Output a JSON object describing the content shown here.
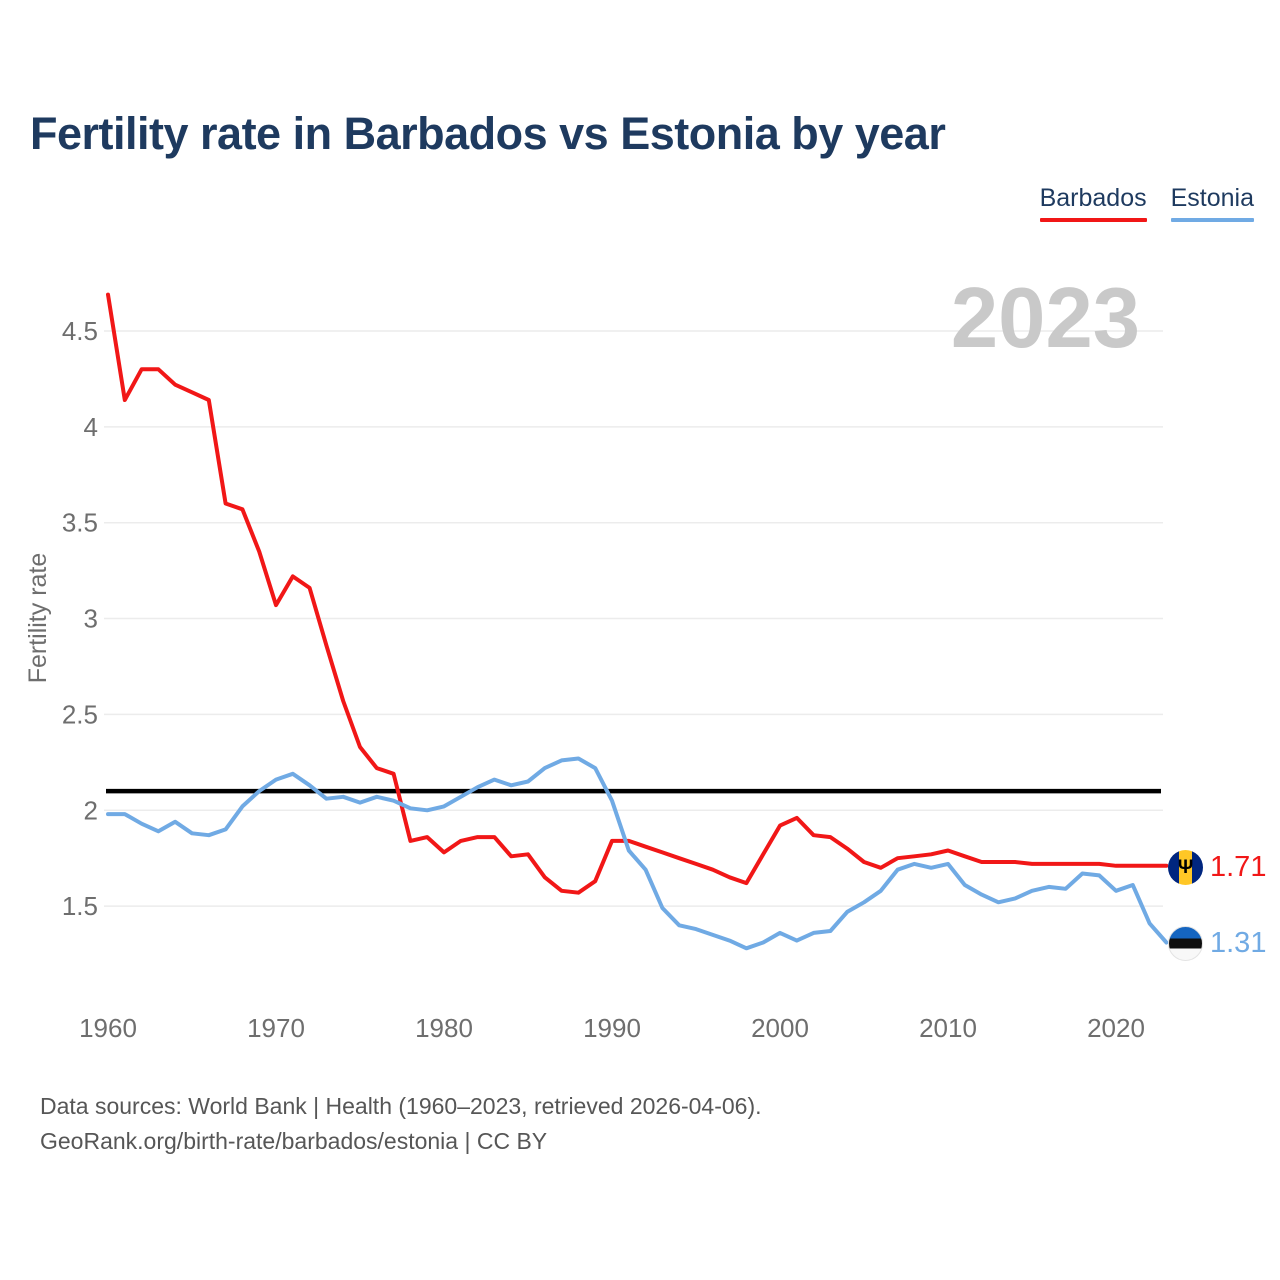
{
  "header": {
    "title": "Fertility rate in Barbados vs Estonia by year"
  },
  "legend": {
    "items": [
      {
        "label": "Barbados",
        "color_key": "barbados"
      },
      {
        "label": "Estonia",
        "color_key": "estonia"
      }
    ]
  },
  "icons": {
    "barbados_trident": "Ψ"
  },
  "colors": {
    "barbados": "#f11717",
    "estonia": "#70aae4",
    "reference": "#000000",
    "title_navy": "#1e3a5f",
    "axis_text": "#6e6e6e",
    "gridline": "#ececec",
    "watermark": "#c9c9c9"
  },
  "chart_data": {
    "type": "line",
    "title": "Fertility rate in Barbados vs Estonia by year",
    "xlabel": "",
    "ylabel": "Fertility rate",
    "watermark": "2023",
    "ylim": [
      1.2,
      4.75
    ],
    "xlim": [
      1960,
      2023
    ],
    "grid": true,
    "legend_position": "top-right",
    "reference_line": 2.1,
    "y_ticks": [
      "4.5",
      "4",
      "3.5",
      "3",
      "2.5",
      "2",
      "1.5"
    ],
    "y_tick_values": [
      4.5,
      4.0,
      3.5,
      3.0,
      2.5,
      2.0,
      1.5
    ],
    "x_ticks": [
      "1960",
      "1970",
      "1980",
      "1990",
      "2000",
      "2010",
      "2020"
    ],
    "x_tick_values": [
      1960,
      1970,
      1980,
      1990,
      2000,
      2010,
      2020
    ],
    "years": [
      1960,
      1961,
      1962,
      1963,
      1964,
      1965,
      1966,
      1967,
      1968,
      1969,
      1970,
      1971,
      1972,
      1973,
      1974,
      1975,
      1976,
      1977,
      1978,
      1979,
      1980,
      1981,
      1982,
      1983,
      1984,
      1985,
      1986,
      1987,
      1988,
      1989,
      1990,
      1991,
      1992,
      1993,
      1994,
      1995,
      1996,
      1997,
      1998,
      1999,
      2000,
      2001,
      2002,
      2003,
      2004,
      2005,
      2006,
      2007,
      2008,
      2009,
      2010,
      2011,
      2012,
      2013,
      2014,
      2015,
      2016,
      2017,
      2018,
      2019,
      2020,
      2021,
      2022,
      2023
    ],
    "series": [
      {
        "name": "Barbados",
        "color_key": "barbados",
        "values": [
          4.69,
          4.14,
          4.3,
          4.3,
          4.22,
          4.18,
          4.14,
          3.6,
          3.57,
          3.35,
          3.07,
          3.22,
          3.16,
          2.86,
          2.57,
          2.33,
          2.22,
          2.19,
          1.84,
          1.86,
          1.78,
          1.84,
          1.86,
          1.86,
          1.76,
          1.77,
          1.65,
          1.58,
          1.57,
          1.63,
          1.84,
          1.84,
          1.81,
          1.78,
          1.75,
          1.72,
          1.69,
          1.65,
          1.62,
          1.77,
          1.92,
          1.96,
          1.87,
          1.86,
          1.8,
          1.73,
          1.7,
          1.75,
          1.76,
          1.77,
          1.79,
          1.76,
          1.73,
          1.73,
          1.73,
          1.72,
          1.72,
          1.72,
          1.72,
          1.72,
          1.71,
          1.71,
          1.71,
          1.71
        ]
      },
      {
        "name": "Estonia",
        "color_key": "estonia",
        "values": [
          1.98,
          1.98,
          1.93,
          1.89,
          1.94,
          1.88,
          1.87,
          1.9,
          2.02,
          2.1,
          2.16,
          2.19,
          2.13,
          2.06,
          2.07,
          2.04,
          2.07,
          2.05,
          2.01,
          2.0,
          2.02,
          2.07,
          2.12,
          2.16,
          2.13,
          2.15,
          2.22,
          2.26,
          2.27,
          2.22,
          2.05,
          1.79,
          1.69,
          1.49,
          1.4,
          1.38,
          1.35,
          1.32,
          1.28,
          1.31,
          1.36,
          1.32,
          1.36,
          1.37,
          1.47,
          1.52,
          1.58,
          1.69,
          1.72,
          1.7,
          1.72,
          1.61,
          1.56,
          1.52,
          1.54,
          1.58,
          1.6,
          1.59,
          1.67,
          1.66,
          1.58,
          1.61,
          1.41,
          1.31
        ]
      }
    ],
    "end_labels": [
      {
        "series": "Barbados",
        "value": "1.71",
        "color_key": "barbados"
      },
      {
        "series": "Estonia",
        "value": "1.31",
        "color_key": "estonia"
      }
    ]
  },
  "footer": {
    "line1": "Data sources: World Bank | Health (1960–2023, retrieved 2026-04-06).",
    "line2": "GeoRank.org/birth-rate/barbados/estonia | CC BY"
  }
}
